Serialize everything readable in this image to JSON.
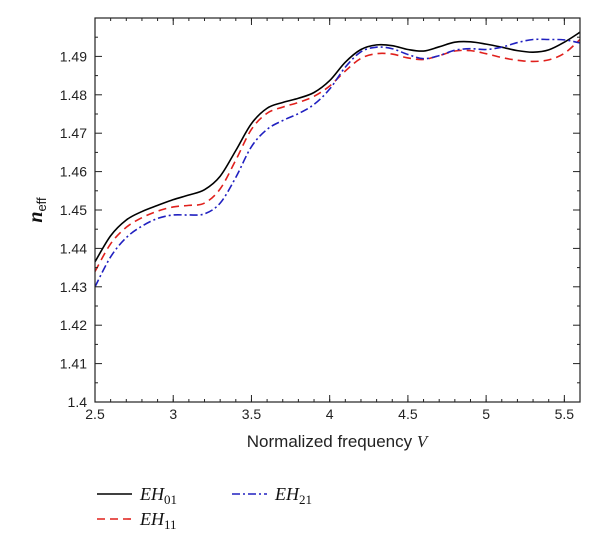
{
  "chart_data": {
    "type": "line",
    "xlabel": "Normalized frequency V",
    "xlabel_text": "Normalized frequency ",
    "xlabel_var": "V",
    "ylabel_main": "n",
    "ylabel_sub": "eff",
    "xlim": [
      2.5,
      5.6
    ],
    "ylim": [
      1.4,
      1.5
    ],
    "xticks": [
      "2.5",
      "3",
      "3.5",
      "4",
      "4.5",
      "5",
      "5.5"
    ],
    "xtick_values": [
      2.5,
      3,
      3.5,
      4,
      4.5,
      5,
      5.5
    ],
    "yticks": [
      "1.4",
      "1.41",
      "1.42",
      "1.43",
      "1.44",
      "1.45",
      "1.46",
      "1.47",
      "1.48",
      "1.49"
    ],
    "ytick_values": [
      1.4,
      1.41,
      1.42,
      1.43,
      1.44,
      1.45,
      1.46,
      1.47,
      1.48,
      1.49
    ],
    "grid": false,
    "legend_position": "bottom-left",
    "series": [
      {
        "name": "EH01",
        "label_main": "EH",
        "label_sub": "01",
        "color": "#000000",
        "dash": "",
        "x": [
          2.5,
          2.6,
          2.7,
          2.8,
          2.9,
          3.0,
          3.1,
          3.2,
          3.3,
          3.4,
          3.5,
          3.6,
          3.7,
          3.8,
          3.9,
          4.0,
          4.1,
          4.2,
          4.3,
          4.4,
          4.5,
          4.6,
          4.7,
          4.8,
          4.9,
          5.0,
          5.1,
          5.2,
          5.3,
          5.4,
          5.5,
          5.6
        ],
        "y": [
          1.4365,
          1.4433,
          1.4474,
          1.4496,
          1.4512,
          1.4527,
          1.4539,
          1.4553,
          1.4588,
          1.4655,
          1.4725,
          1.4765,
          1.478,
          1.4791,
          1.4806,
          1.4837,
          1.4885,
          1.4918,
          1.493,
          1.4928,
          1.4918,
          1.4914,
          1.4925,
          1.4937,
          1.4938,
          1.4932,
          1.4924,
          1.4915,
          1.4911,
          1.4917,
          1.4937,
          1.4963
        ]
      },
      {
        "name": "EH11",
        "label_main": "EH",
        "label_sub": "11",
        "color": "#e0201c",
        "dash": "8,5",
        "x": [
          2.5,
          2.6,
          2.7,
          2.8,
          2.9,
          3.0,
          3.1,
          3.2,
          3.3,
          3.4,
          3.5,
          3.6,
          3.7,
          3.8,
          3.9,
          4.0,
          4.1,
          4.2,
          4.3,
          4.4,
          4.5,
          4.6,
          4.7,
          4.8,
          4.9,
          5.0,
          5.1,
          5.2,
          5.3,
          5.4,
          5.5,
          5.6
        ],
        "y": [
          1.434,
          1.4412,
          1.4455,
          1.448,
          1.4497,
          1.4508,
          1.4512,
          1.4518,
          1.4555,
          1.463,
          1.471,
          1.4752,
          1.4768,
          1.478,
          1.4796,
          1.4823,
          1.4862,
          1.4895,
          1.4907,
          1.4906,
          1.4896,
          1.4892,
          1.4902,
          1.4914,
          1.4915,
          1.4907,
          1.4897,
          1.489,
          1.4887,
          1.4891,
          1.4908,
          1.4944
        ]
      },
      {
        "name": "EH21",
        "label_main": "EH",
        "label_sub": "21",
        "color": "#2020c0",
        "dash": "8,3,2,3",
        "x": [
          2.5,
          2.6,
          2.7,
          2.8,
          2.9,
          3.0,
          3.1,
          3.2,
          3.3,
          3.4,
          3.5,
          3.6,
          3.7,
          3.8,
          3.9,
          4.0,
          4.1,
          4.2,
          4.3,
          4.4,
          4.5,
          4.6,
          4.7,
          4.8,
          4.9,
          5.0,
          5.1,
          5.2,
          5.3,
          5.4,
          5.5,
          5.6
        ],
        "y": [
          1.43,
          1.4378,
          1.4428,
          1.4458,
          1.4478,
          1.4487,
          1.4487,
          1.449,
          1.4518,
          1.4585,
          1.4665,
          1.471,
          1.4733,
          1.4751,
          1.4775,
          1.4815,
          1.4872,
          1.4912,
          1.4924,
          1.492,
          1.4905,
          1.4894,
          1.4902,
          1.4916,
          1.492,
          1.4918,
          1.4924,
          1.4936,
          1.4944,
          1.4944,
          1.4943,
          1.4935
        ]
      }
    ]
  }
}
